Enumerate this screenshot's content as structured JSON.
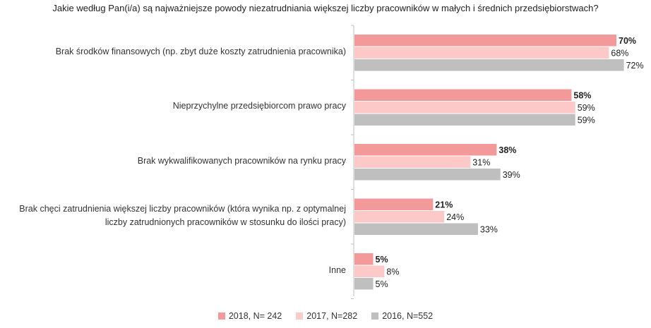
{
  "chart_data": {
    "type": "bar",
    "orientation": "horizontal",
    "title": "Jakie według Pan(i/a) są najważniejsze powody niezatrudniania większej liczby pracowników w małych i średnich przedsiębiorstwach?",
    "categories": [
      [
        "Brak środków finansowych (np. zbyt duże koszty zatrudnienia pracownika)"
      ],
      [
        "Nieprzychylne przedsiębiorcom prawo pracy"
      ],
      [
        "Brak wykwalifikowanych pracowników na rynku pracy"
      ],
      [
        "Brak chęci zatrudnienia większej liczby pracowników (która wynika np. z optymalnej",
        "liczby zatrudnionych pracowników w stosunku do ilości pracy)"
      ],
      [
        "Inne"
      ]
    ],
    "series": [
      {
        "name": "2018, N= 242",
        "color": "#f4999a",
        "values": [
          70,
          58,
          38,
          21,
          5
        ],
        "labels": [
          "70%",
          "58%",
          "38%",
          "21%",
          "5%"
        ]
      },
      {
        "name": "2017, N=282",
        "color": "#fcc8c8",
        "values": [
          68,
          59,
          31,
          24,
          8
        ],
        "labels": [
          "68%",
          "59%",
          "31%",
          "24%",
          "8%"
        ]
      },
      {
        "name": "2016, N=552",
        "color": "#bfbfbf",
        "values": [
          72,
          59,
          39,
          33,
          5
        ],
        "labels": [
          "72%",
          "59%",
          "39%",
          "33%",
          "5%"
        ]
      }
    ],
    "xlim": [
      0,
      100
    ],
    "legend_position": "bottom"
  }
}
